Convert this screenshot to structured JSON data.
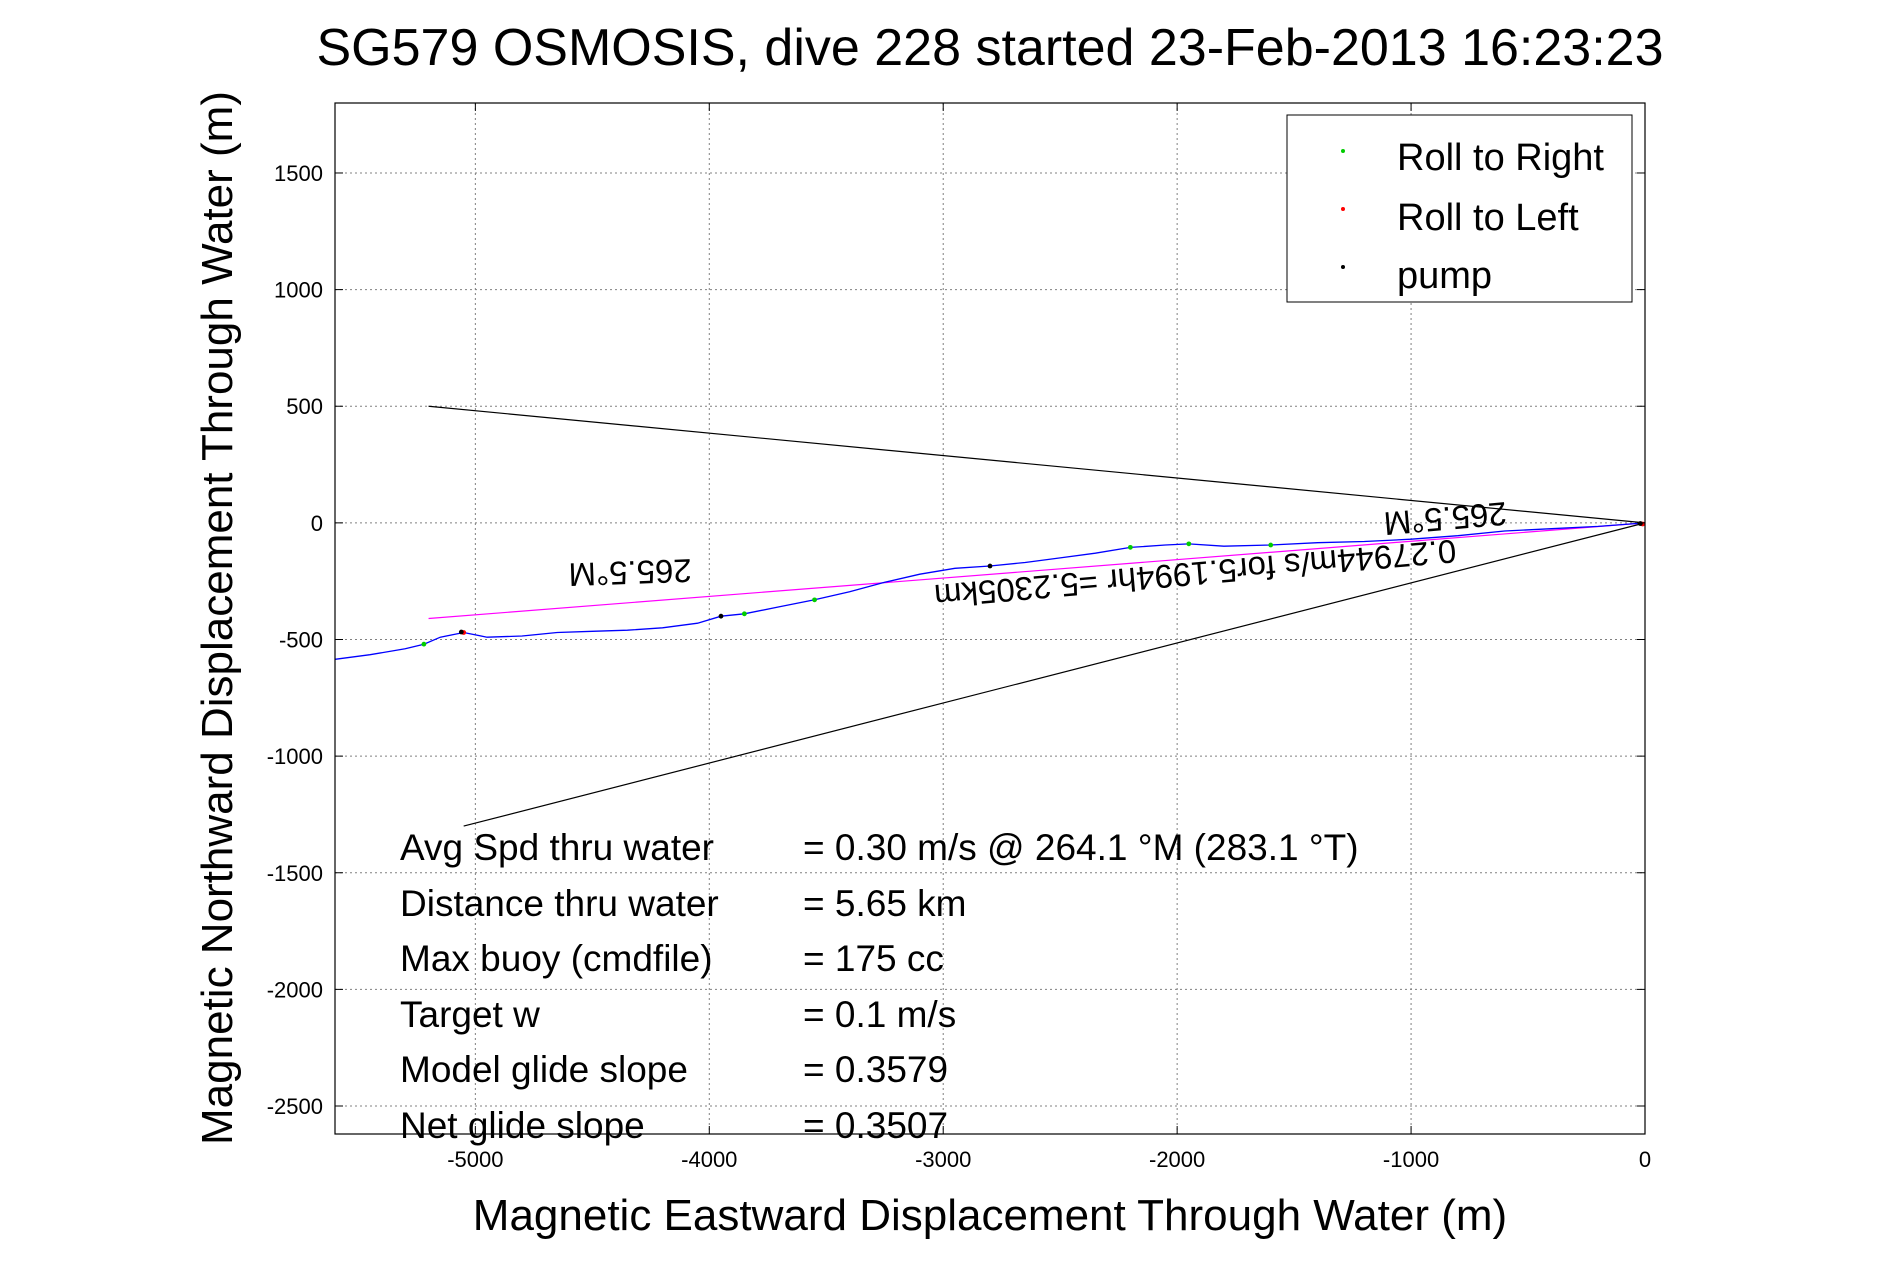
{
  "chart_data": {
    "type": "line",
    "title": "SG579 OSMOSIS, dive 228 started 23-Feb-2013 16:23:23",
    "xlabel": "Magnetic Eastward Displacement Through Water (m)",
    "ylabel": "Magnetic Northward Displacement Through Water (m)",
    "xlim": [
      -5600,
      0
    ],
    "ylim": [
      -2620,
      1800
    ],
    "x_ticks": [
      -5000,
      -4000,
      -3000,
      -2000,
      -1000,
      0
    ],
    "y_ticks": [
      1500,
      1000,
      500,
      0,
      -500,
      -1000,
      -1500,
      -2000,
      -2500
    ],
    "grid": true,
    "legend_position": "top-right",
    "legend": [
      {
        "label": "Roll to Right",
        "color": "#00cc00"
      },
      {
        "label": "Roll to Left",
        "color": "#ff0000"
      },
      {
        "label": "pump",
        "color": "#000000"
      }
    ],
    "series": [
      {
        "name": "track",
        "color": "#0000ff",
        "x": [
          -5600,
          -5450,
          -5300,
          -5220,
          -5150,
          -5050,
          -4950,
          -4800,
          -4650,
          -4500,
          -4350,
          -4200,
          -4050,
          -3950,
          -3850,
          -3700,
          -3550,
          -3400,
          -3250,
          -3100,
          -2950,
          -2800,
          -2650,
          -2500,
          -2350,
          -2200,
          -2050,
          -1950,
          -1800,
          -1600,
          -1400,
          -1200,
          -1000,
          -800,
          -600,
          -400,
          -200,
          0
        ],
        "y": [
          -585,
          -565,
          -540,
          -520,
          -490,
          -470,
          -490,
          -485,
          -470,
          -465,
          -460,
          -450,
          -430,
          -400,
          -390,
          -360,
          -330,
          -295,
          -255,
          -220,
          -195,
          -185,
          -170,
          -150,
          -130,
          -105,
          -95,
          -90,
          -100,
          -95,
          -85,
          -80,
          -70,
          -55,
          -35,
          -25,
          -15,
          0
        ]
      }
    ],
    "markers": {
      "roll_right": {
        "x": [
          -5220,
          -3850,
          -3550,
          -2200,
          -1950,
          -1600
        ],
        "y": [
          -520,
          -390,
          -330,
          -105,
          -90,
          -95
        ]
      },
      "roll_left": {
        "x": [
          -5050,
          -10
        ],
        "y": [
          -470,
          -5
        ]
      },
      "pump": {
        "x": [
          -5060,
          -3950,
          -2800,
          -20
        ],
        "y": [
          -468,
          -400,
          -185,
          -3
        ]
      }
    },
    "reference_lines": [
      {
        "name": "current",
        "color": "#ff00ff",
        "x": [
          -5200,
          0
        ],
        "y": [
          -410,
          0
        ]
      },
      {
        "name": "upper-bound",
        "color": "#000000",
        "x": [
          -5200,
          0
        ],
        "y": [
          500,
          0
        ]
      },
      {
        "name": "lower-bound",
        "color": "#000000",
        "x": [
          -5050,
          0
        ],
        "y": [
          -1300,
          0
        ]
      }
    ],
    "annotations": [
      {
        "text": "265.5°M",
        "x": -3950,
        "y": -190,
        "rotation": 178
      },
      {
        "text": "265.5°M",
        "x": -700,
        "y": 30,
        "rotation": 175
      },
      {
        "text": "0.27944m/s for5.1994hr =5.2305km",
        "x": -2350,
        "y": -190,
        "rotation": 175
      }
    ]
  },
  "stats": {
    "labels": [
      "Avg Spd thru water",
      "Distance thru water",
      "Max buoy (cmdfile)",
      "Target w",
      "Model glide slope",
      "Net glide slope"
    ],
    "values": [
      "=  0.30 m/s @ 264.1 °M (283.1 °T)",
      "=  5.65 km",
      "= 175 cc",
      "= 0.1 m/s",
      "= 0.3579",
      "= 0.3507"
    ]
  }
}
